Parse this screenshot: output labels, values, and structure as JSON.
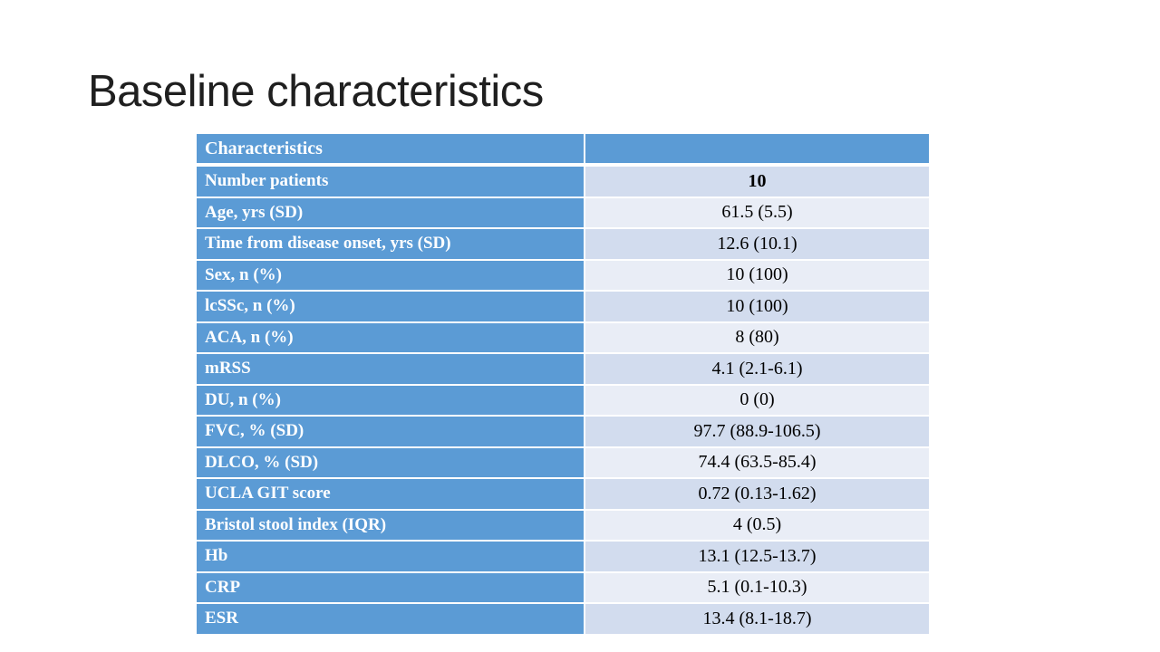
{
  "slide": {
    "title": "Baseline characteristics"
  },
  "table": {
    "header": {
      "label": "Characteristics",
      "value": ""
    },
    "rows": [
      {
        "label": "Number patients",
        "value": "10",
        "bold": true
      },
      {
        "label": "Age, yrs (SD)",
        "value": "61.5 (5.5)",
        "bold": false
      },
      {
        "label": "Time from disease onset, yrs (SD)",
        "value": "12.6 (10.1)",
        "bold": false
      },
      {
        "label": "Sex, n (%)",
        "value": "10 (100)",
        "bold": false
      },
      {
        "label": "lcSSc, n (%)",
        "value": "10 (100)",
        "bold": false
      },
      {
        "label": "ACA, n (%)",
        "value": "8 (80)",
        "bold": false
      },
      {
        "label": "mRSS",
        "value": "4.1 (2.1-6.1)",
        "bold": false
      },
      {
        "label": "DU, n (%)",
        "value": "0 (0)",
        "bold": false
      },
      {
        "label": "FVC, % (SD)",
        "value": "97.7 (88.9-106.5)",
        "bold": false
      },
      {
        "label": "DLCO, % (SD)",
        "value": "74.4 (63.5-85.4)",
        "bold": false
      },
      {
        "label": "UCLA GIT score",
        "value": "0.72 (0.13-1.62)",
        "bold": false
      },
      {
        "label": "Bristol stool index (IQR)",
        "value": "4 (0.5)",
        "bold": false
      },
      {
        "label": "Hb",
        "value": "13.1 (12.5-13.7)",
        "bold": false
      },
      {
        "label": "CRP",
        "value": "5.1 (0.1-10.3)",
        "bold": false
      },
      {
        "label": "ESR",
        "value": "13.4 (8.1-18.7)",
        "bold": false
      }
    ]
  },
  "colors": {
    "header_blue": "#5B9BD5",
    "band_dark": "#D2DCEE",
    "band_light": "#E9EDF6",
    "header_text": "#FFFFFF",
    "value_text": "#000000",
    "title_text": "#1F1F1F",
    "background": "#FFFFFF"
  }
}
